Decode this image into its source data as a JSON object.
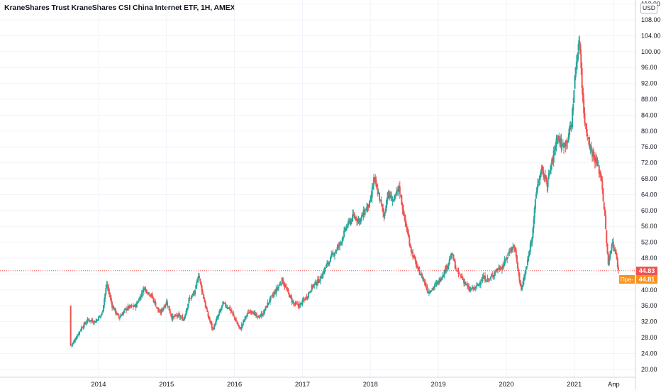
{
  "header": {
    "title": "KraneShares Trust KraneShares CSI China Internet ETF, 1H, AMEX"
  },
  "axis": {
    "currency": "USD",
    "last_price_label": "44.83",
    "prev_close_label": "44.81",
    "prev_close_tag": "Пре-"
  },
  "colors": {
    "up": "#26a69a",
    "down": "#ef5350",
    "last_price": "#ef5350",
    "prev_close": "#f7921e",
    "grid": "#f0f3fa",
    "axis_line": "#d1d4dc"
  },
  "chart_data": {
    "type": "candlestick",
    "symbol": "KraneShares Trust KraneShares CSI China Internet ETF",
    "interval": "1H",
    "exchange": "AMEX",
    "ylim": [
      18,
      113
    ],
    "y_ticks": [
      20,
      24,
      28,
      32,
      36,
      40,
      44,
      48,
      52,
      56,
      60,
      64,
      68,
      72,
      76,
      80,
      84,
      88,
      92,
      96,
      100,
      104,
      108,
      112
    ],
    "x_ticks": [
      {
        "label": "2014",
        "t": 2014.0
      },
      {
        "label": "2015",
        "t": 2015.0
      },
      {
        "label": "2016",
        "t": 2016.0
      },
      {
        "label": "2017",
        "t": 2017.0
      },
      {
        "label": "2018",
        "t": 2018.0
      },
      {
        "label": "2019",
        "t": 2019.0
      },
      {
        "label": "2020",
        "t": 2020.0
      },
      {
        "label": "2021",
        "t": 2021.0
      },
      {
        "label": "Апр",
        "t": 2021.58
      }
    ],
    "x_range": [
      2012.55,
      2021.9
    ],
    "last_price": 44.83,
    "prev_close": 44.81,
    "price_path": [
      [
        2013.58,
        36.0
      ],
      [
        2013.59,
        26.0
      ],
      [
        2013.62,
        26.5
      ],
      [
        2013.75,
        30.5
      ],
      [
        2013.85,
        32.5
      ],
      [
        2013.95,
        32.0
      ],
      [
        2014.05,
        34.0
      ],
      [
        2014.12,
        41.5
      ],
      [
        2014.2,
        36.0
      ],
      [
        2014.3,
        33.0
      ],
      [
        2014.42,
        35.5
      ],
      [
        2014.55,
        36.0
      ],
      [
        2014.67,
        40.5
      ],
      [
        2014.78,
        38.5
      ],
      [
        2014.9,
        34.0
      ],
      [
        2015.0,
        37.0
      ],
      [
        2015.08,
        33.0
      ],
      [
        2015.17,
        33.5
      ],
      [
        2015.25,
        32.5
      ],
      [
        2015.33,
        37.5
      ],
      [
        2015.42,
        39.5
      ],
      [
        2015.47,
        44.0
      ],
      [
        2015.52,
        40.0
      ],
      [
        2015.6,
        34.0
      ],
      [
        2015.68,
        30.0
      ],
      [
        2015.75,
        33.0
      ],
      [
        2015.83,
        36.5
      ],
      [
        2015.92,
        35.5
      ],
      [
        2016.0,
        33.0
      ],
      [
        2016.08,
        30.0
      ],
      [
        2016.17,
        33.5
      ],
      [
        2016.25,
        35.0
      ],
      [
        2016.33,
        33.0
      ],
      [
        2016.42,
        34.0
      ],
      [
        2016.5,
        37.0
      ],
      [
        2016.6,
        39.5
      ],
      [
        2016.7,
        42.5
      ],
      [
        2016.78,
        39.5
      ],
      [
        2016.87,
        36.5
      ],
      [
        2016.95,
        36.0
      ],
      [
        2017.05,
        38.0
      ],
      [
        2017.15,
        41.0
      ],
      [
        2017.25,
        42.5
      ],
      [
        2017.35,
        46.0
      ],
      [
        2017.45,
        49.0
      ],
      [
        2017.55,
        51.5
      ],
      [
        2017.65,
        56.0
      ],
      [
        2017.75,
        58.5
      ],
      [
        2017.85,
        57.5
      ],
      [
        2017.92,
        60.0
      ],
      [
        2018.0,
        62.0
      ],
      [
        2018.05,
        68.0
      ],
      [
        2018.12,
        64.0
      ],
      [
        2018.2,
        58.5
      ],
      [
        2018.25,
        64.0
      ],
      [
        2018.35,
        62.5
      ],
      [
        2018.42,
        66.0
      ],
      [
        2018.5,
        58.0
      ],
      [
        2018.6,
        50.0
      ],
      [
        2018.7,
        45.0
      ],
      [
        2018.77,
        43.0
      ],
      [
        2018.85,
        39.5
      ],
      [
        2018.92,
        40.5
      ],
      [
        2019.0,
        42.0
      ],
      [
        2019.1,
        45.0
      ],
      [
        2019.2,
        49.0
      ],
      [
        2019.27,
        44.5
      ],
      [
        2019.35,
        43.0
      ],
      [
        2019.45,
        40.0
      ],
      [
        2019.55,
        40.5
      ],
      [
        2019.65,
        43.0
      ],
      [
        2019.75,
        42.5
      ],
      [
        2019.85,
        45.0
      ],
      [
        2019.95,
        46.0
      ],
      [
        2020.05,
        50.0
      ],
      [
        2020.12,
        51.0
      ],
      [
        2020.18,
        44.0
      ],
      [
        2020.22,
        40.0
      ],
      [
        2020.3,
        46.0
      ],
      [
        2020.38,
        54.0
      ],
      [
        2020.45,
        66.0
      ],
      [
        2020.52,
        70.0
      ],
      [
        2020.6,
        67.0
      ],
      [
        2020.67,
        72.0
      ],
      [
        2020.75,
        79.0
      ],
      [
        2020.82,
        76.0
      ],
      [
        2020.9,
        78.0
      ],
      [
        2020.96,
        82.0
      ],
      [
        2021.02,
        96.0
      ],
      [
        2021.08,
        103.0
      ],
      [
        2021.1,
        96.0
      ],
      [
        2021.14,
        84.0
      ],
      [
        2021.18,
        80.0
      ],
      [
        2021.25,
        75.0
      ],
      [
        2021.33,
        72.0
      ],
      [
        2021.4,
        68.0
      ],
      [
        2021.45,
        58.0
      ],
      [
        2021.5,
        46.0
      ],
      [
        2021.55,
        52.0
      ],
      [
        2021.6,
        50.0
      ],
      [
        2021.65,
        44.83
      ]
    ]
  }
}
